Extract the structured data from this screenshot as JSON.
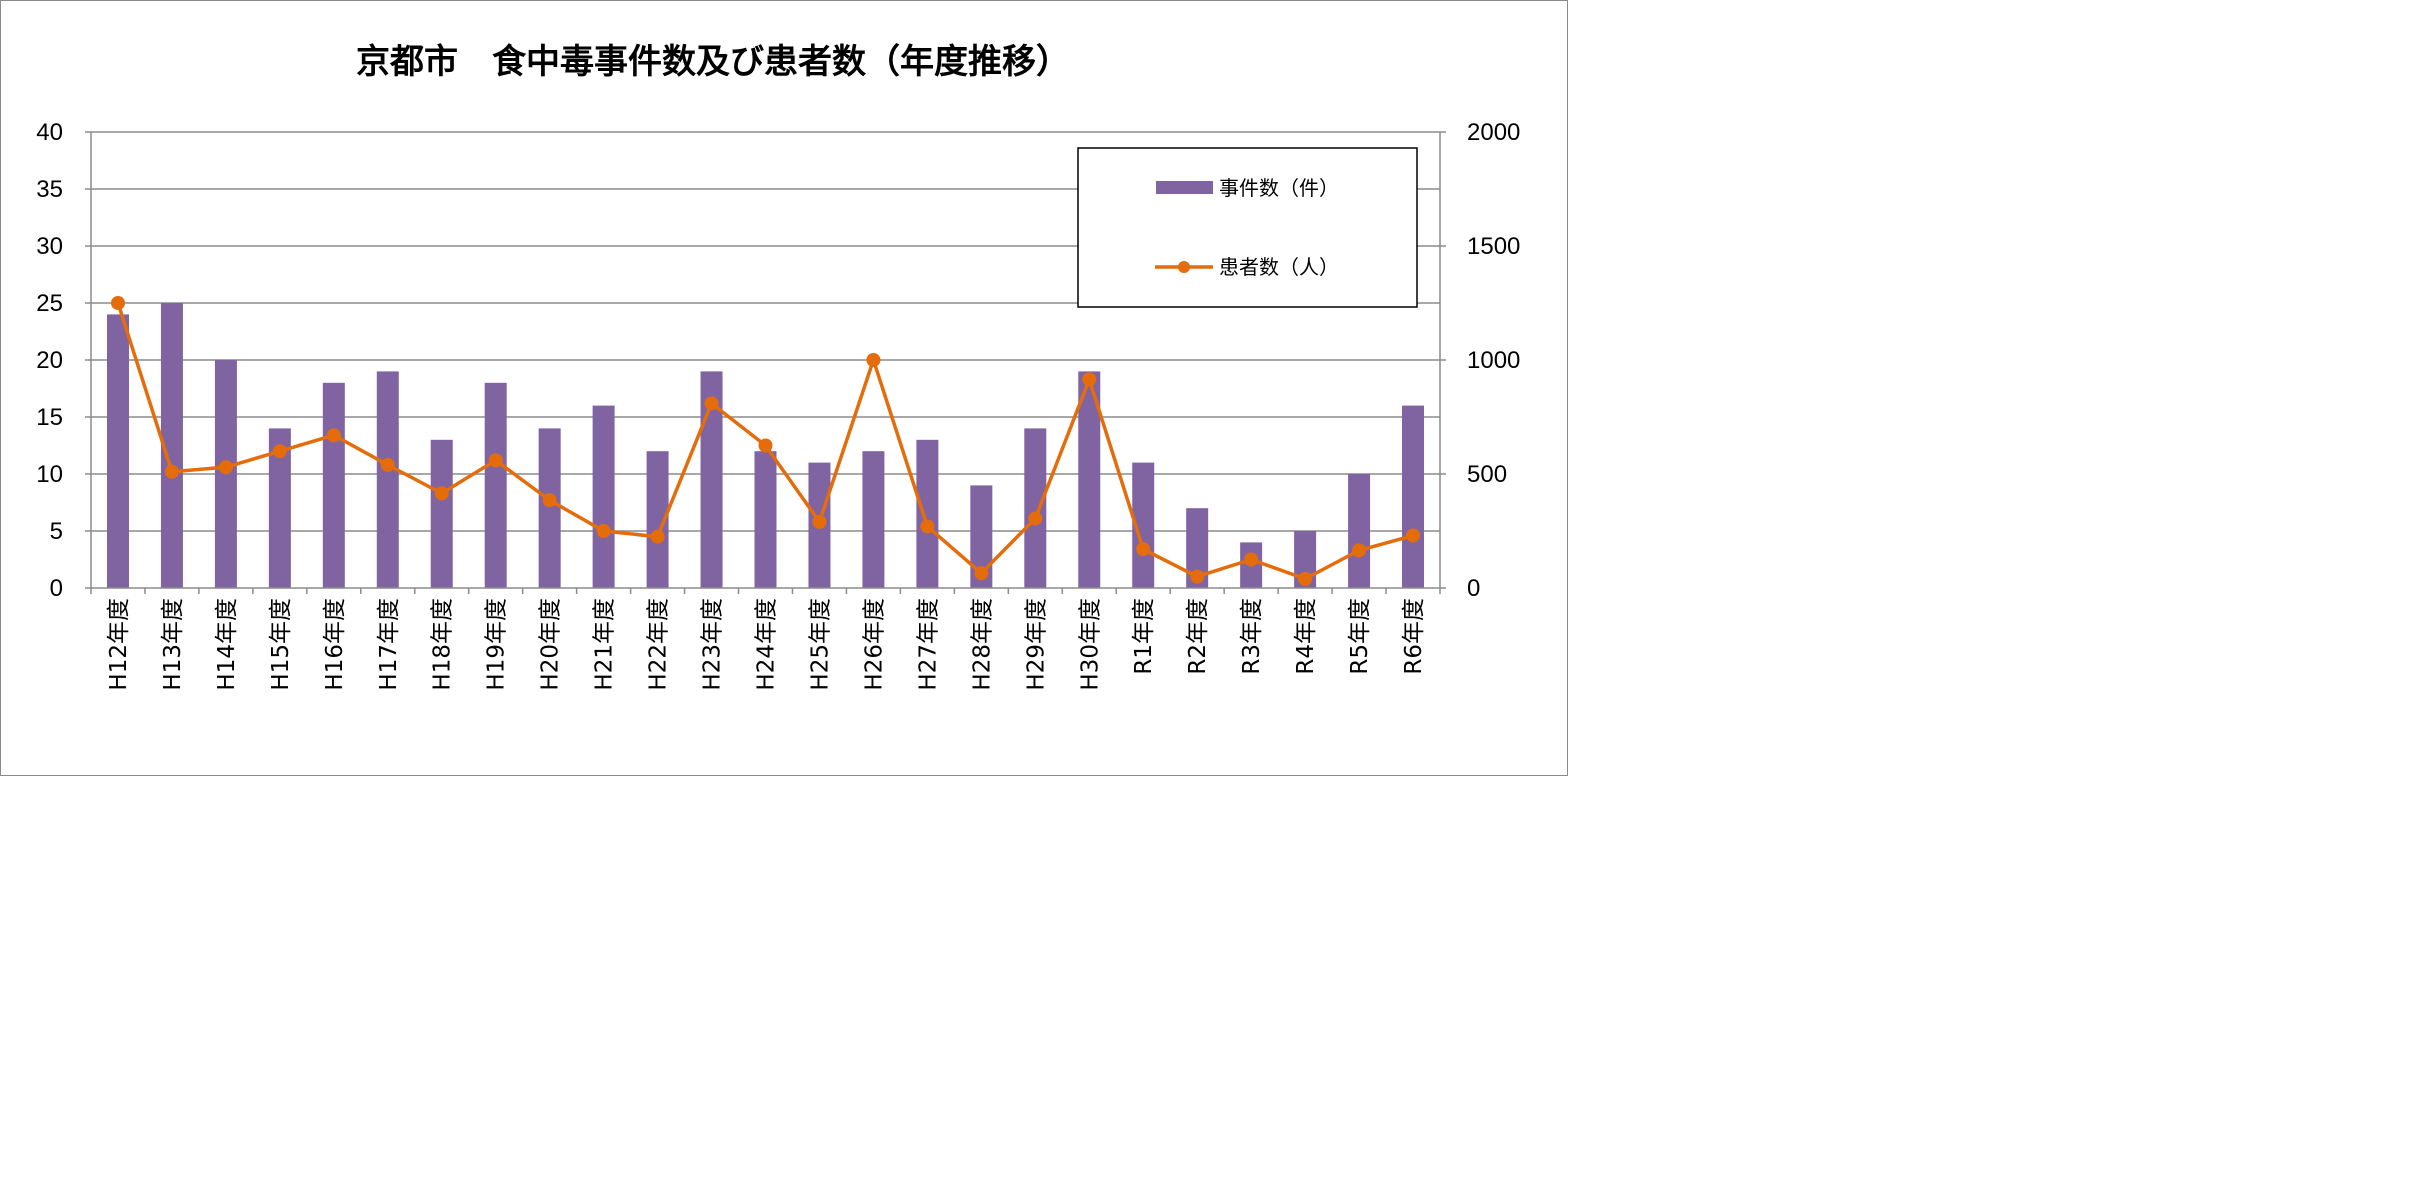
{
  "chart_data": {
    "type": "bar+line",
    "title": "京都市　食中毒事件数及び患者数（年度推移）",
    "categories": [
      "H12年度",
      "H13年度",
      "H14年度",
      "H15年度",
      "H16年度",
      "H17年度",
      "H18年度",
      "H19年度",
      "H20年度",
      "H21年度",
      "H22年度",
      "H23年度",
      "H24年度",
      "H25年度",
      "H26年度",
      "H27年度",
      "H28年度",
      "H29年度",
      "H30年度",
      "R1年度",
      "R2年度",
      "R3年度",
      "R4年度",
      "R5年度",
      "R6年度"
    ],
    "series": [
      {
        "name": "事件数（件）",
        "type": "bar",
        "axis": "left",
        "color": "#8064a2",
        "values": [
          24,
          25,
          20,
          14,
          18,
          19,
          13,
          18,
          14,
          16,
          12,
          19,
          12,
          11,
          12,
          13,
          9,
          14,
          19,
          11,
          7,
          4,
          5,
          10,
          16
        ]
      },
      {
        "name": "患者数（人）",
        "type": "line",
        "axis": "right",
        "color": "#e46c0a",
        "values": [
          1250,
          510,
          530,
          600,
          670,
          540,
          415,
          560,
          385,
          250,
          225,
          810,
          625,
          290,
          1000,
          270,
          65,
          305,
          915,
          170,
          50,
          125,
          40,
          165,
          230
        ]
      }
    ],
    "y_left": {
      "min": 0,
      "max": 40,
      "ticks": [
        "0",
        "5",
        "10",
        "15",
        "20",
        "25",
        "30",
        "35",
        "40"
      ]
    },
    "y_right": {
      "min": 0,
      "max": 2000,
      "ticks": [
        "0",
        "500",
        "1000",
        "1500",
        "2000"
      ]
    },
    "grid": true,
    "legend_position": "top-right"
  }
}
